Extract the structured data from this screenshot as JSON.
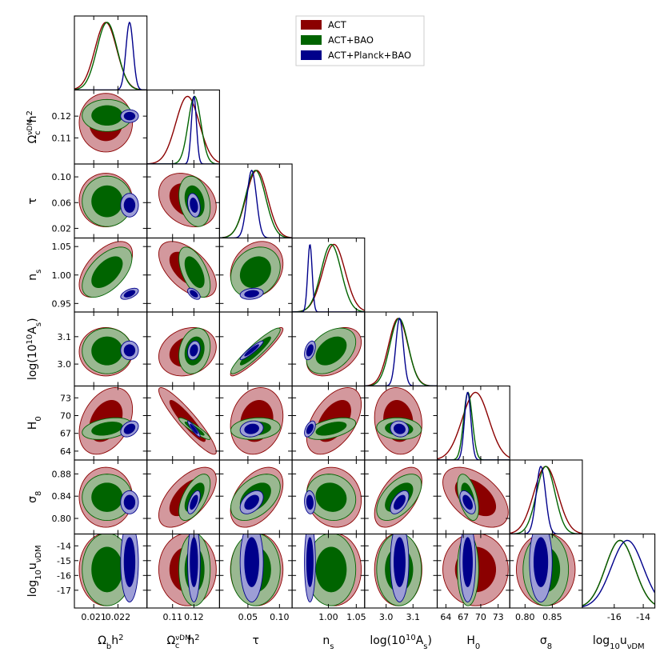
{
  "chart_data": {
    "type": "triangle",
    "title": "",
    "parameters": [
      {
        "key": "omb",
        "label_main": "Ω",
        "label_sub": "b",
        "label_rest": "h",
        "label_sup": "2",
        "range": [
          0.0202,
          0.0232
        ],
        "ticks": [
          "0.021",
          "0.022"
        ],
        "tick_values": [
          0.021,
          0.022
        ]
      },
      {
        "key": "omc",
        "label_main": "Ω",
        "label_sub": "c",
        "label_sup_top": "νDM",
        "label_rest": "h",
        "label_sup": "2",
        "range": [
          0.098,
          0.132
        ],
        "ticks": [
          "0.11",
          "0.12"
        ],
        "tick_values": [
          0.11,
          0.12
        ]
      },
      {
        "key": "tau",
        "label_main": "τ",
        "range": [
          0.005,
          0.12
        ],
        "ticks": [
          "0.05",
          "0.10"
        ],
        "tick_values": [
          0.05,
          0.1
        ],
        "ticks_y": [
          "0.02",
          "0.06",
          "0.10"
        ],
        "tick_values_y": [
          0.02,
          0.06,
          0.1
        ]
      },
      {
        "key": "ns",
        "label_main": "n",
        "label_sub": "s",
        "range": [
          0.935,
          1.065
        ],
        "ticks": [
          "1.00",
          "1.05"
        ],
        "tick_values": [
          1.0,
          1.05
        ],
        "ticks_y": [
          "0.95",
          "1.00",
          "1.05"
        ],
        "tick_values_y": [
          0.95,
          1.0,
          1.05
        ]
      },
      {
        "key": "logA",
        "label_main": "log(10",
        "label_sup": "10",
        "label_rest": "A",
        "label_sub": "s",
        "label_close": ")",
        "range": [
          2.92,
          3.19
        ],
        "ticks": [
          "3.0",
          "3.1"
        ],
        "tick_values": [
          3.0,
          3.1
        ]
      },
      {
        "key": "H0",
        "label_main": "H",
        "label_sub": "0",
        "range": [
          62.5,
          75
        ],
        "ticks": [
          "64",
          "67",
          "70",
          "73"
        ],
        "tick_values": [
          64,
          67,
          70,
          73
        ]
      },
      {
        "key": "s8",
        "label_main": "σ",
        "label_sub": "8",
        "range": [
          0.772,
          0.905
        ],
        "ticks": [
          "0.80",
          "0.85"
        ],
        "tick_values": [
          0.8,
          0.85
        ],
        "ticks_y": [
          "0.80",
          "0.84",
          "0.88"
        ],
        "tick_values_y": [
          0.8,
          0.84,
          0.88
        ]
      },
      {
        "key": "logu",
        "label_main": "log",
        "label_sub": "10",
        "label_rest": "u",
        "label_sub2": "νDM",
        "range": [
          -18.2,
          -13.2
        ],
        "ticks": [
          "-16",
          "-14"
        ],
        "tick_values": [
          -16,
          -14
        ],
        "ticks_y": [
          "-14",
          "-15",
          "-16",
          "-17"
        ],
        "tick_values_y": [
          -14,
          -15,
          -16,
          -17
        ]
      }
    ],
    "series": [
      {
        "name": "ACT",
        "color_dark": "#8b0000",
        "color_light": "#d3989d",
        "mean": [
          0.0215,
          0.117,
          0.064,
          1.01,
          3.045,
          69.1,
          0.838,
          -15.6
        ],
        "sigma": [
          0.00045,
          0.0055,
          0.017,
          0.02,
          0.036,
          2.3,
          0.022,
          1.0
        ]
      },
      {
        "name": "ACT+BAO",
        "color_dark": "#006400",
        "color_light": "#9ab891",
        "mean": [
          0.02155,
          0.1203,
          0.062,
          1.005,
          3.048,
          67.8,
          0.838,
          -15.6
        ],
        "sigma": [
          0.00042,
          0.003,
          0.016,
          0.018,
          0.034,
          0.75,
          0.017,
          1.0
        ]
      },
      {
        "name": "ACT+Planck+BAO",
        "color_dark": "#00008b",
        "color_light": "#9d9ed6",
        "mean": [
          0.02248,
          0.12,
          0.056,
          0.967,
          3.05,
          67.75,
          0.829,
          -15.1
        ],
        "sigma": [
          0.00015,
          0.0012,
          0.0075,
          0.004,
          0.014,
          0.55,
          0.0085,
          1.1
        ]
      }
    ],
    "correlations": {
      "omb-omc": 0.0,
      "omb-tau": 0.0,
      "omb-ns": 0.55,
      "omb-logA": 0.0,
      "omb-H0": 0.35,
      "omb-s8": 0.0,
      "omc-tau": -0.25,
      "omc-ns": -0.55,
      "omc-logA": 0.2,
      "omc-H0": -0.92,
      "omc-s8": 0.6,
      "tau-ns": 0.2,
      "tau-logA": 0.93,
      "tau-H0": 0.15,
      "tau-s8": 0.45,
      "ns-logA": 0.4,
      "ns-H0": 0.5,
      "ns-s8": -0.1,
      "logA-H0": -0.1,
      "logA-s8": 0.55,
      "H0-s8": -0.5
    },
    "legend": {
      "position": "top-right",
      "entries": [
        "ACT",
        "ACT+BAO",
        "ACT+Planck+BAO"
      ]
    }
  }
}
